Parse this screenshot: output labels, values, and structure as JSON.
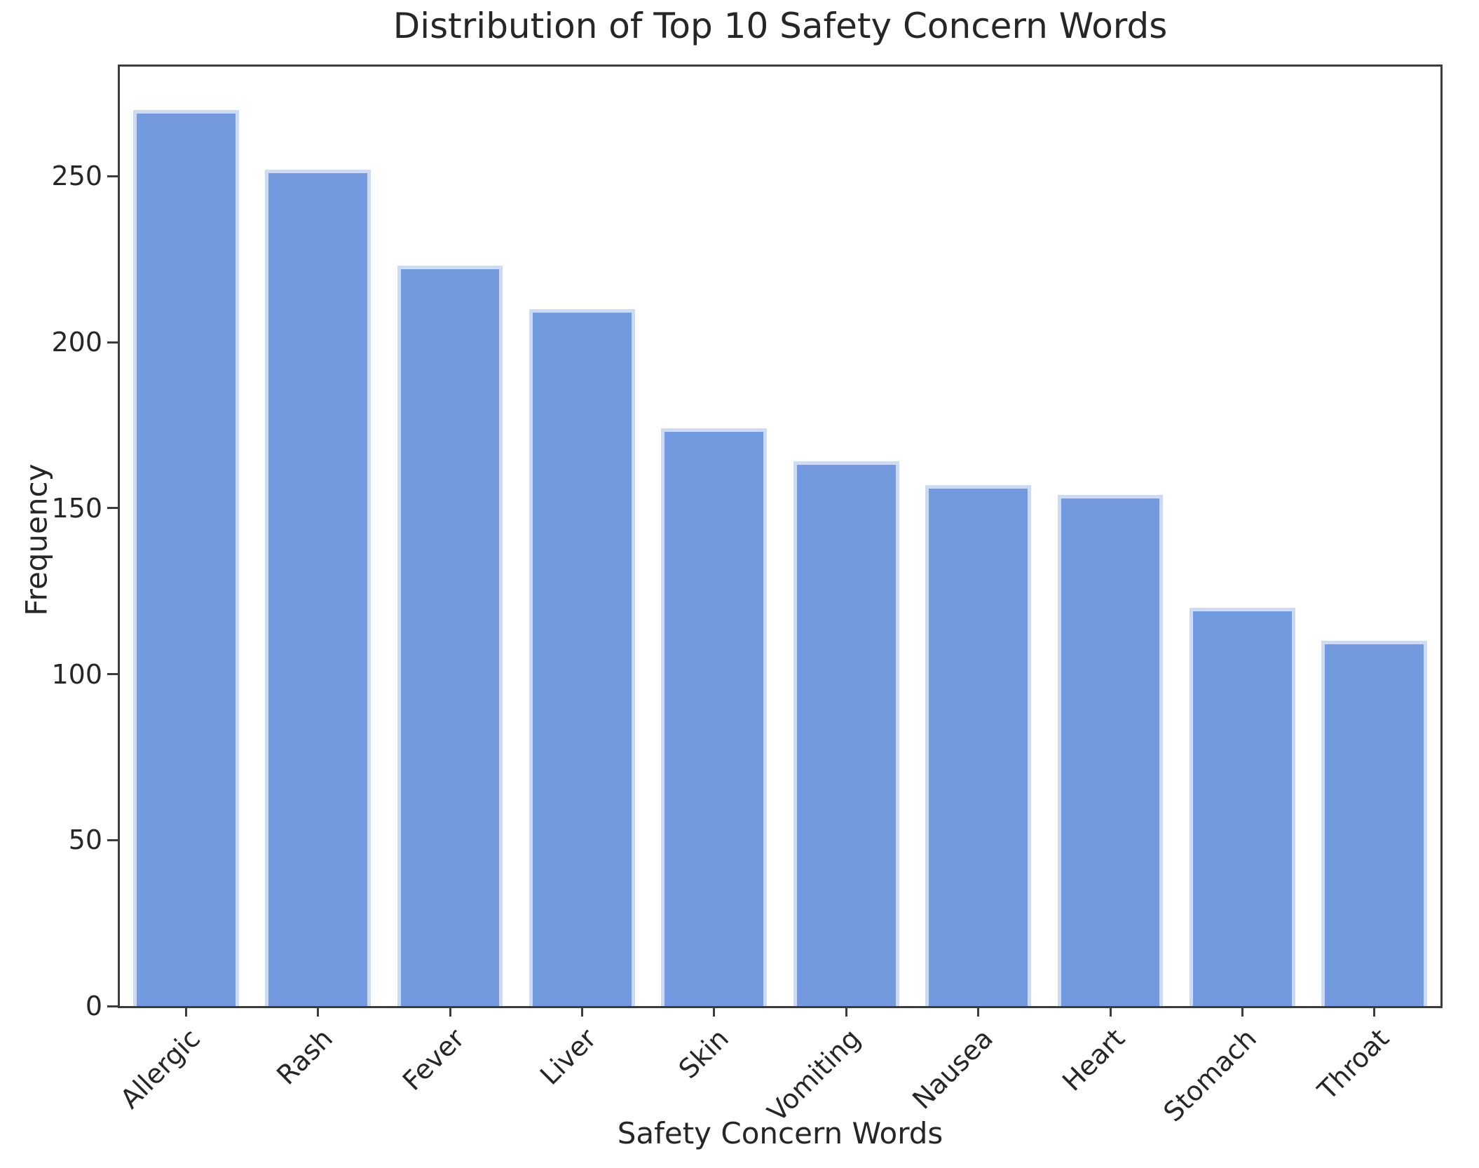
{
  "chart_data": {
    "type": "bar",
    "title": "Distribution of Top 10 Safety Concern Words",
    "xlabel": "Safety Concern Words",
    "ylabel": "Frequency",
    "categories": [
      "Allergic",
      "Rash",
      "Fever",
      "Liver",
      "Skin",
      "Vomiting",
      "Nausea",
      "Heart",
      "Stomach",
      "Throat"
    ],
    "values": [
      270,
      252,
      223,
      210,
      174,
      164,
      157,
      154,
      120,
      110
    ],
    "ytick_labels": [
      "0",
      "50",
      "100",
      "150",
      "200",
      "250"
    ],
    "yticks": [
      0,
      50,
      100,
      150,
      200,
      250
    ],
    "ylim": [
      0,
      283
    ],
    "x_tick_rotation_deg": 45,
    "grid": false,
    "legend": null,
    "colors": {
      "bar_fill": "#7399de",
      "bar_edge": "#ccdaf4",
      "spine": "#3c3c3c",
      "text": "#262626",
      "background": "#ffffff"
    }
  }
}
